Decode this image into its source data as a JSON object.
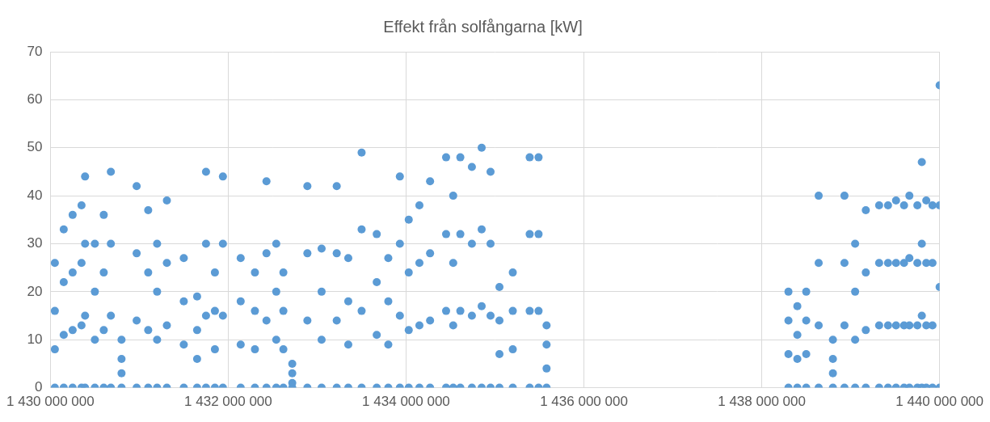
{
  "chart_data": {
    "type": "scatter",
    "title": "Effekt från solfångarna [kW]",
    "color": "#5b9bd5",
    "marker": "circle",
    "grid": true,
    "xlim": [
      1430000000,
      1440000000
    ],
    "xticks": [
      {
        "value": 1430000000,
        "label": "1 430 000 000"
      },
      {
        "value": 1432000000,
        "label": "1 432 000 000"
      },
      {
        "value": 1434000000,
        "label": "1 434 000 000"
      },
      {
        "value": 1436000000,
        "label": "1 436 000 000"
      },
      {
        "value": 1438000000,
        "label": "1 438 000 000"
      },
      {
        "value": 1440000000,
        "label": "1 440 000 000"
      }
    ],
    "ylim": [
      0,
      70
    ],
    "yticks": [
      0,
      10,
      20,
      30,
      40,
      50,
      60,
      70
    ],
    "x": [
      1430050000,
      1430050000,
      1430050000,
      1430050000,
      1430150000,
      1430150000,
      1430150000,
      1430150000,
      1430250000,
      1430250000,
      1430250000,
      1430250000,
      1430350000,
      1430350000,
      1430350000,
      1430350000,
      1430390000,
      1430390000,
      1430390000,
      1430390000,
      1430500000,
      1430500000,
      1430500000,
      1430500000,
      1430600000,
      1430600000,
      1430600000,
      1430600000,
      1430680000,
      1430680000,
      1430680000,
      1430680000,
      1430800000,
      1430800000,
      1430800000,
      1430800000,
      1430970000,
      1430970000,
      1430970000,
      1430970000,
      1431100000,
      1431100000,
      1431100000,
      1431100000,
      1431200000,
      1431200000,
      1431200000,
      1431200000,
      1431310000,
      1431310000,
      1431310000,
      1431310000,
      1431500000,
      1431500000,
      1431500000,
      1431500000,
      1431650000,
      1431650000,
      1431650000,
      1431650000,
      1431750000,
      1431750000,
      1431750000,
      1431750000,
      1431850000,
      1431850000,
      1431850000,
      1431850000,
      1431940000,
      1431940000,
      1431940000,
      1431940000,
      1432140000,
      1432140000,
      1432140000,
      1432140000,
      1432300000,
      1432300000,
      1432300000,
      1432300000,
      1432430000,
      1432430000,
      1432430000,
      1432430000,
      1432540000,
      1432540000,
      1432540000,
      1432540000,
      1432620000,
      1432620000,
      1432620000,
      1432620000,
      1432720000,
      1432720000,
      1432720000,
      1432720000,
      1432890000,
      1432890000,
      1432890000,
      1432890000,
      1433050000,
      1433050000,
      1433050000,
      1433050000,
      1433220000,
      1433220000,
      1433220000,
      1433220000,
      1433350000,
      1433350000,
      1433350000,
      1433350000,
      1433500000,
      1433500000,
      1433500000,
      1433500000,
      1433670000,
      1433670000,
      1433670000,
      1433670000,
      1433800000,
      1433800000,
      1433800000,
      1433800000,
      1433930000,
      1433930000,
      1433930000,
      1433930000,
      1434030000,
      1434030000,
      1434030000,
      1434030000,
      1434150000,
      1434150000,
      1434150000,
      1434150000,
      1434270000,
      1434270000,
      1434270000,
      1434270000,
      1434450000,
      1434450000,
      1434450000,
      1434450000,
      1434530000,
      1434530000,
      1434530000,
      1434530000,
      1434610000,
      1434610000,
      1434610000,
      1434610000,
      1434740000,
      1434740000,
      1434740000,
      1434740000,
      1434850000,
      1434850000,
      1434850000,
      1434850000,
      1434950000,
      1434950000,
      1434950000,
      1434950000,
      1435050000,
      1435050000,
      1435050000,
      1435050000,
      1435200000,
      1435200000,
      1435200000,
      1435200000,
      1435390000,
      1435390000,
      1435390000,
      1435390000,
      1435490000,
      1435490000,
      1435490000,
      1435490000,
      1435580000,
      1435580000,
      1435580000,
      1435580000,
      1438300000,
      1438300000,
      1438300000,
      1438300000,
      1438400000,
      1438400000,
      1438400000,
      1438400000,
      1438500000,
      1438500000,
      1438500000,
      1438500000,
      1438640000,
      1438640000,
      1438640000,
      1438640000,
      1438800000,
      1438800000,
      1438800000,
      1438800000,
      1438930000,
      1438930000,
      1438930000,
      1438930000,
      1439050000,
      1439050000,
      1439050000,
      1439050000,
      1439170000,
      1439170000,
      1439170000,
      1439170000,
      1439320000,
      1439320000,
      1439320000,
      1439320000,
      1439420000,
      1439420000,
      1439420000,
      1439420000,
      1439510000,
      1439510000,
      1439510000,
      1439510000,
      1439600000,
      1439600000,
      1439600000,
      1439600000,
      1439660000,
      1439660000,
      1439660000,
      1439660000,
      1439750000,
      1439750000,
      1439750000,
      1439750000,
      1439800000,
      1439800000,
      1439800000,
      1439800000,
      1439850000,
      1439850000,
      1439850000,
      1439850000,
      1439920000,
      1439920000,
      1439920000,
      1439920000,
      1440000000,
      1440000000,
      1440000000,
      1440000000
    ],
    "values": [
      0,
      8,
      16,
      26,
      0,
      11,
      22,
      33,
      0,
      12,
      24,
      36,
      0,
      13,
      26,
      38,
      0,
      15,
      30,
      44,
      0,
      10,
      20,
      30,
      0,
      12,
      24,
      36,
      0,
      15,
      30,
      45,
      0,
      3,
      6,
      10,
      0,
      14,
      28,
      42,
      0,
      12,
      24,
      37,
      0,
      10,
      20,
      30,
      0,
      13,
      26,
      39,
      0,
      9,
      18,
      27,
      0,
      6,
      12,
      19,
      0,
      15,
      30,
      45,
      0,
      8,
      16,
      24,
      0,
      15,
      30,
      44,
      0,
      9,
      18,
      27,
      0,
      8,
      16,
      24,
      0,
      14,
      28,
      43,
      0,
      10,
      20,
      30,
      0,
      8,
      16,
      24,
      0,
      1,
      3,
      5,
      0,
      14,
      28,
      42,
      0,
      10,
      20,
      29,
      0,
      14,
      28,
      42,
      0,
      9,
      18,
      27,
      0,
      16,
      33,
      49,
      0,
      11,
      22,
      32,
      0,
      9,
      18,
      27,
      0,
      15,
      30,
      44,
      0,
      12,
      24,
      35,
      0,
      13,
      26,
      38,
      0,
      14,
      28,
      43,
      0,
      16,
      32,
      48,
      0,
      13,
      26,
      40,
      0,
      16,
      32,
      48,
      0,
      15,
      30,
      46,
      0,
      17,
      33,
      50,
      0,
      15,
      30,
      45,
      0,
      7,
      14,
      21,
      0,
      8,
      16,
      24,
      0,
      16,
      32,
      48,
      0,
      16,
      32,
      48,
      0,
      4,
      9,
      13,
      0,
      7,
      14,
      20,
      0,
      6,
      11,
      17,
      0,
      7,
      14,
      20,
      0,
      13,
      26,
      40,
      0,
      3,
      6,
      10,
      0,
      13,
      26,
      40,
      0,
      10,
      20,
      30,
      0,
      12,
      24,
      37,
      0,
      13,
      26,
      38,
      0,
      13,
      26,
      38,
      0,
      13,
      26,
      39,
      0,
      13,
      26,
      38,
      0,
      13,
      27,
      40,
      0,
      13,
      26,
      38,
      0,
      15,
      30,
      47,
      0,
      13,
      26,
      39,
      0,
      13,
      26,
      38,
      0,
      21,
      38,
      63
    ]
  }
}
